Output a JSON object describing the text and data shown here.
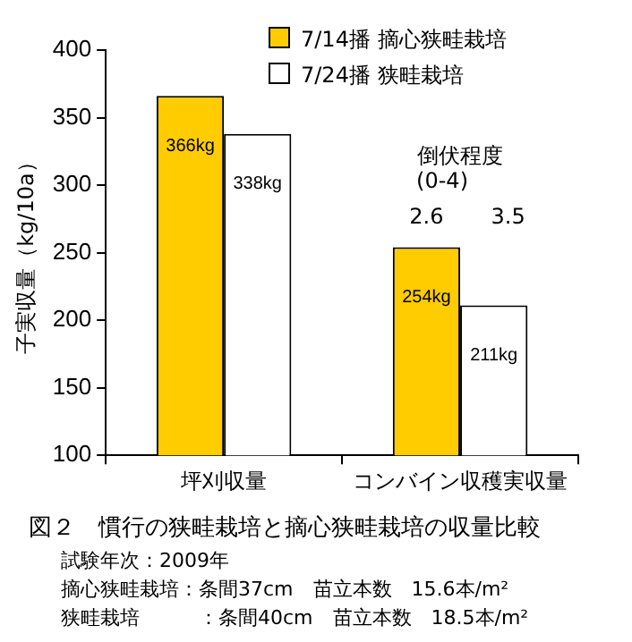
{
  "chart_data": {
    "type": "bar",
    "title": "図２　慣行の狭畦栽培と摘心狭畦栽培の収量比較",
    "ylabel": "子実収量（kg/10a）",
    "categories": [
      "坪刈収量",
      "コンバイン収穫実収量"
    ],
    "series": [
      {
        "name": "7/14播 摘心狭畦栽培",
        "color": "#ffcc00",
        "values": [
          366,
          254
        ],
        "value_labels": [
          "366kg",
          "254kg"
        ]
      },
      {
        "name": "7/24播 狭畦栽培",
        "color": "#ffffff",
        "values": [
          338,
          211
        ],
        "value_labels": [
          "338kg",
          "211kg"
        ]
      }
    ],
    "ylim": [
      100,
      400
    ],
    "yticks": [
      100,
      150,
      200,
      250,
      300,
      350,
      400
    ],
    "grid": false,
    "legend": "top right",
    "annotations": [
      "倒伏程度",
      "(0-4)",
      "2.6",
      "3.5",
      "試験年次：2009年",
      "摘心狭畦栽培：条間37cm　苗立本数　15.6本/m²",
      "狭畦栽培　　　：条間40cm　苗立本数　18.5本/m²"
    ]
  }
}
